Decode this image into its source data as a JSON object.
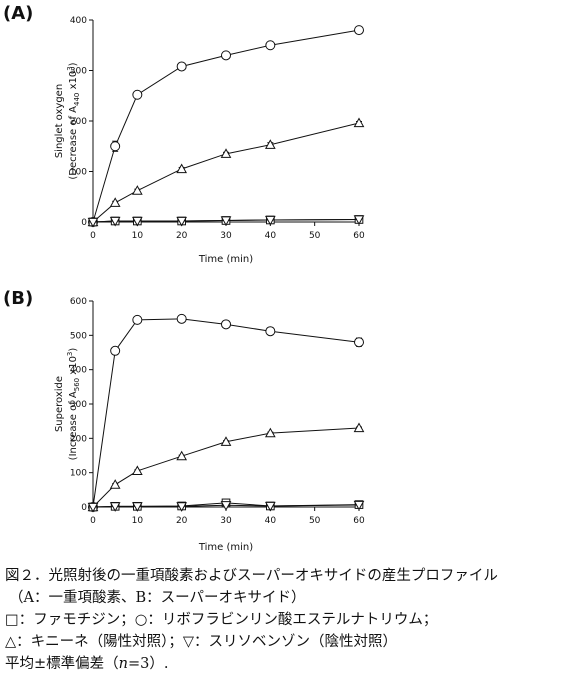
{
  "chart_data": [
    {
      "panel": "(A)",
      "type": "line",
      "ylabel_line1": "Singlet oxygen",
      "ylabel_line2_prefix": "(Decrease of A",
      "ylabel_subscript": "440",
      "ylabel_suffix": " x10",
      "ylabel_superscript": "3",
      "ylabel_close": ")",
      "xlabel": "Time (min)",
      "xlim": [
        0,
        60
      ],
      "ylim": [
        0,
        400
      ],
      "x_ticks": [
        0,
        10,
        20,
        30,
        40,
        50,
        60
      ],
      "y_ticks": [
        0,
        100,
        200,
        300,
        400
      ],
      "x": [
        0,
        5,
        10,
        20,
        30,
        40,
        60
      ],
      "series": [
        {
          "marker": "circle",
          "values": [
            0,
            150,
            252,
            308,
            330,
            350,
            380
          ],
          "errors": [
            0,
            10,
            4,
            3,
            3,
            3,
            3
          ]
        },
        {
          "marker": "triangle",
          "values": [
            0,
            38,
            62,
            105,
            135,
            153,
            196
          ],
          "errors": [
            0,
            3,
            3,
            3,
            3,
            4,
            3
          ]
        },
        {
          "marker": "square",
          "values": [
            0,
            2,
            2,
            2,
            3,
            4,
            5
          ],
          "errors": [
            0,
            0,
            0,
            0,
            0,
            0,
            0
          ]
        },
        {
          "marker": "triangle-down",
          "values": [
            0,
            2,
            2,
            2,
            3,
            4,
            5
          ],
          "errors": [
            0,
            0,
            0,
            0,
            0,
            0,
            0
          ]
        }
      ]
    },
    {
      "panel": "(B)",
      "type": "line",
      "ylabel_line1": "Superoxide",
      "ylabel_line2_prefix": "(Increase of A",
      "ylabel_subscript": "560",
      "ylabel_suffix": " x10",
      "ylabel_superscript": "3",
      "ylabel_close": ")",
      "xlabel": "Time (min)",
      "xlim": [
        0,
        60
      ],
      "ylim": [
        0,
        600
      ],
      "x_ticks": [
        0,
        10,
        20,
        30,
        40,
        50,
        60
      ],
      "y_ticks": [
        0,
        100,
        200,
        300,
        400,
        500,
        600
      ],
      "x": [
        0,
        5,
        10,
        20,
        30,
        40,
        60
      ],
      "series": [
        {
          "marker": "circle",
          "values": [
            0,
            455,
            545,
            548,
            532,
            512,
            480
          ],
          "errors": [
            0,
            5,
            3,
            3,
            4,
            10,
            12
          ]
        },
        {
          "marker": "triangle",
          "values": [
            0,
            65,
            105,
            148,
            190,
            215,
            230
          ],
          "errors": [
            0,
            3,
            3,
            3,
            3,
            3,
            3
          ]
        },
        {
          "marker": "square",
          "values": [
            0,
            2,
            2,
            3,
            12,
            3,
            7
          ],
          "errors": [
            0,
            0,
            0,
            0,
            3,
            0,
            0
          ]
        },
        {
          "marker": "triangle-down",
          "values": [
            0,
            2,
            2,
            2,
            5,
            3,
            6
          ],
          "errors": [
            0,
            0,
            0,
            0,
            0,
            0,
            0
          ]
        }
      ]
    }
  ],
  "caption": {
    "line1": "図２．光照射後の一重項酸素およびスーパーオキサイドの産生プロファイル",
    "line2": "（A：一重項酸素、B：スーパーオキサイド）",
    "line3": "□：ファモチジン；○：リボフラビンリン酸エステルナトリウム；",
    "line4": "△：キニーネ（陽性対照）；▽：スリソベンゾン（陰性対照）",
    "line5_prefix": "平均±標準偏差（",
    "line5_italic": "n",
    "line5_suffix": "=3）."
  }
}
